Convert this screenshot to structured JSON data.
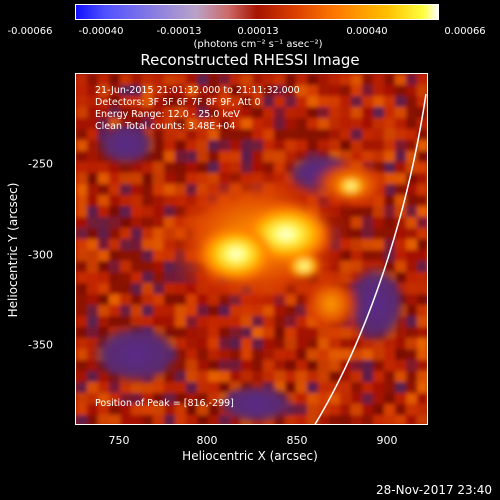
{
  "colorbar": {
    "ticks": [
      "-0.00066",
      "-0.00040",
      "-0.00013",
      "0.00013",
      "0.00040",
      "0.00066"
    ],
    "units": "(photons cm⁻² s⁻¹ asec⁻²)"
  },
  "title": "Reconstructed RHESSI Image",
  "info": {
    "line1": "21-Jun-2015 21:01:32.000 to 21:11:32.000",
    "line2": "Detectors: 3F 5F 6F 7F 8F 9F, Att 0",
    "line3": "Energy Range: 12.0 - 25.0 keV",
    "line4": "Clean     Total counts: 3.48E+04"
  },
  "peak_text": "Position of Peak = [816,-299]",
  "axes": {
    "x_ticks": [
      "750",
      "800",
      "850",
      "900"
    ],
    "y_ticks": [
      "-250",
      "-300",
      "-350"
    ],
    "xlabel": "Heliocentric X (arcsec)",
    "ylabel": "Heliocentric Y (arcsec)"
  },
  "timestamp": "28-Nov-2017 23:40"
}
